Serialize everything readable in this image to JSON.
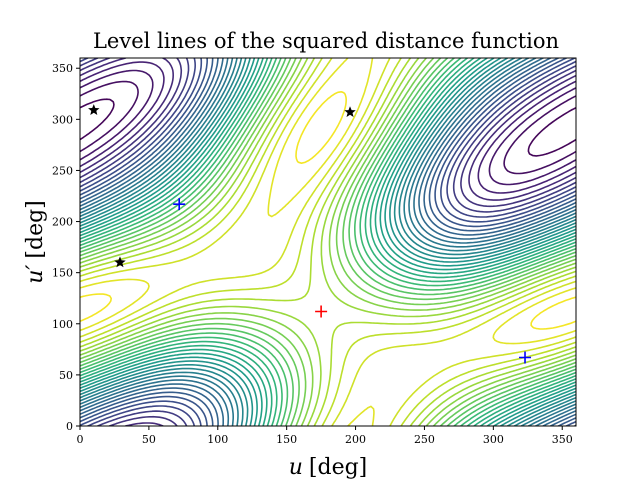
{
  "chart_data": {
    "type": "contour",
    "title": "Level lines of the squared distance function",
    "xlabel": {
      "var": "u",
      "unit": "[deg]"
    },
    "ylabel": {
      "var": "u′",
      "unit": "[deg]"
    },
    "xlim": [
      0,
      360
    ],
    "ylim": [
      0,
      360
    ],
    "xticks": [
      0,
      50,
      100,
      150,
      200,
      250,
      300,
      350
    ],
    "yticks": [
      0,
      50,
      100,
      150,
      200,
      250,
      300,
      350
    ],
    "grid": false,
    "colormap": "viridis",
    "levels": 36,
    "markers": {
      "maximum": [
        {
          "x": 175,
          "y": 112,
          "symbol": "+",
          "color": "#ff0000"
        }
      ],
      "minima": [
        {
          "x": 72,
          "y": 217,
          "symbol": "+",
          "color": "#0000ff"
        },
        {
          "x": 323,
          "y": 67,
          "symbol": "+",
          "color": "#0000ff"
        }
      ],
      "saddles": [
        {
          "x": 10,
          "y": 309,
          "symbol": "star",
          "color": "#000000"
        },
        {
          "x": 29,
          "y": 160,
          "symbol": "star",
          "color": "#000000"
        },
        {
          "x": 196,
          "y": 307,
          "symbol": "star",
          "color": "#000000"
        }
      ]
    }
  }
}
